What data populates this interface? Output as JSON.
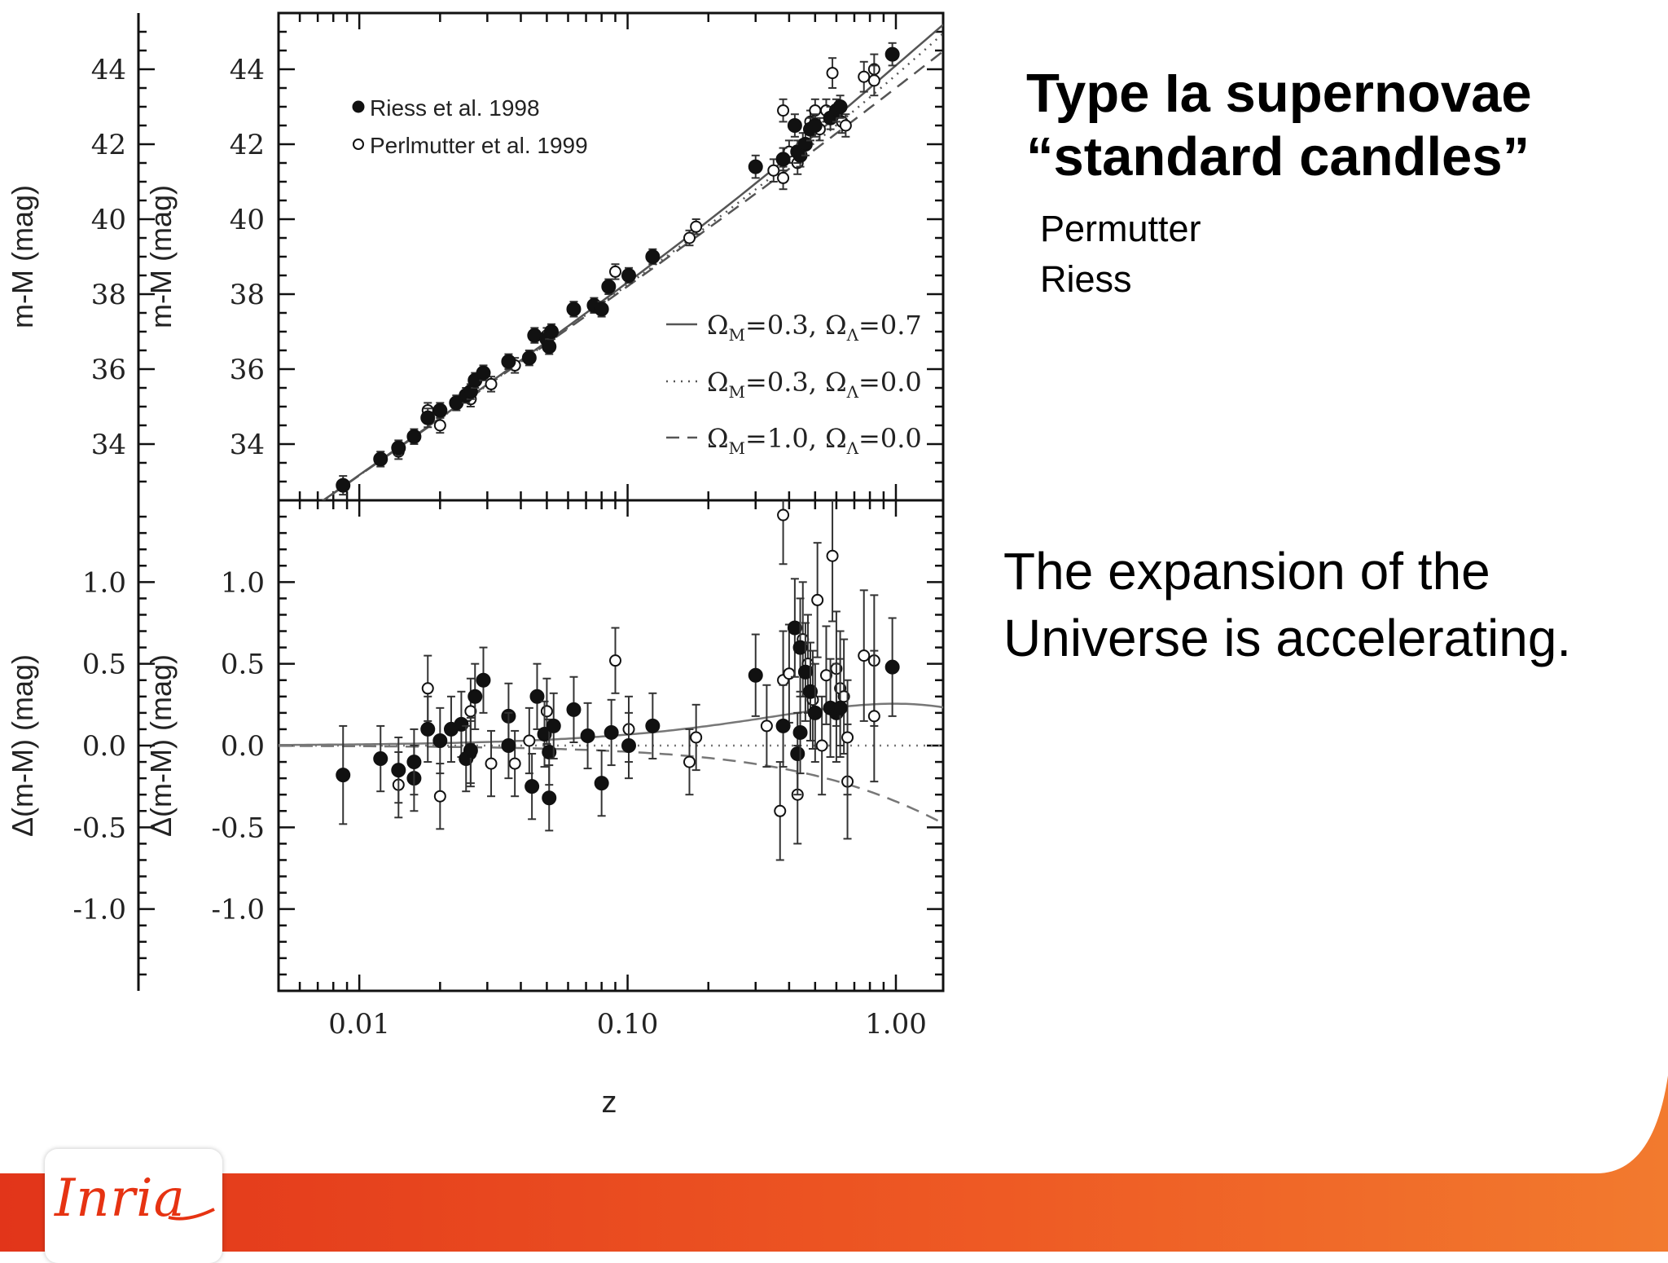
{
  "slide": {
    "title_line1": "Type Ia supernovae",
    "title_line2": "“standard candles”",
    "authors": [
      "Permutter",
      "Riess"
    ],
    "conclusion_line1": "The expansion of the",
    "conclusion_line2": "Universe is accelerating."
  },
  "logo": {
    "text": "Inria"
  },
  "colors": {
    "band_red": "#e2351a",
    "band_orange": "#f2722a",
    "logo_red": "#e63312"
  },
  "chart_data": {
    "type": "scatter",
    "x_scale": "log",
    "xlim": [
      0.005,
      1.5
    ],
    "xticks": [
      0.01,
      0.1,
      1.0
    ],
    "xtick_labels": [
      "0.01",
      "0.10",
      "1.00"
    ],
    "xlabel": "z",
    "legend_placement": "top-left (markers), lower-right (model curves)",
    "legend": [
      {
        "label": "Riess et al. 1998",
        "marker": "filled-circle"
      },
      {
        "label": "Perlmutter et al. 1999",
        "marker": "open-circle"
      }
    ],
    "models": [
      {
        "label": "=0.3, =0.7",
        "om": 0.3,
        "ol": 0.7,
        "style": "solid"
      },
      {
        "label": "=0.3, =0.0",
        "om": 0.3,
        "ol": 0.0,
        "style": "dotted"
      },
      {
        "label": "=1.0, =0.0",
        "om": 1.0,
        "ol": 0.0,
        "style": "dashed"
      }
    ],
    "panels": [
      {
        "name": "hubble-diagram",
        "ylabel": "m-M (mag)",
        "ylim": [
          32.5,
          45.5
        ],
        "yticks": [
          34,
          36,
          38,
          40,
          42,
          44
        ],
        "riess": [
          {
            "z": 0.0087,
            "y": 32.9,
            "e": 0.25
          },
          {
            "z": 0.012,
            "y": 33.6,
            "e": 0.2
          },
          {
            "z": 0.014,
            "y": 33.9,
            "e": 0.2
          },
          {
            "z": 0.016,
            "y": 34.2,
            "e": 0.2
          },
          {
            "z": 0.018,
            "y": 34.7,
            "e": 0.25
          },
          {
            "z": 0.02,
            "y": 34.9,
            "e": 0.2
          },
          {
            "z": 0.023,
            "y": 35.1,
            "e": 0.2
          },
          {
            "z": 0.025,
            "y": 35.3,
            "e": 0.2
          },
          {
            "z": 0.026,
            "y": 35.4,
            "e": 0.2
          },
          {
            "z": 0.027,
            "y": 35.7,
            "e": 0.2
          },
          {
            "z": 0.029,
            "y": 35.9,
            "e": 0.2
          },
          {
            "z": 0.036,
            "y": 36.2,
            "e": 0.2
          },
          {
            "z": 0.043,
            "y": 36.3,
            "e": 0.2
          },
          {
            "z": 0.045,
            "y": 36.9,
            "e": 0.2
          },
          {
            "z": 0.05,
            "y": 36.8,
            "e": 0.2
          },
          {
            "z": 0.051,
            "y": 36.6,
            "e": 0.2
          },
          {
            "z": 0.052,
            "y": 37.0,
            "e": 0.2
          },
          {
            "z": 0.063,
            "y": 37.6,
            "e": 0.2
          },
          {
            "z": 0.075,
            "y": 37.7,
            "e": 0.2
          },
          {
            "z": 0.08,
            "y": 37.6,
            "e": 0.2
          },
          {
            "z": 0.085,
            "y": 38.2,
            "e": 0.2
          },
          {
            "z": 0.101,
            "y": 38.5,
            "e": 0.2
          },
          {
            "z": 0.124,
            "y": 39.0,
            "e": 0.2
          },
          {
            "z": 0.3,
            "y": 41.4,
            "e": 0.3
          },
          {
            "z": 0.38,
            "y": 41.6,
            "e": 0.3
          },
          {
            "z": 0.42,
            "y": 42.5,
            "e": 0.3
          },
          {
            "z": 0.43,
            "y": 41.8,
            "e": 0.3
          },
          {
            "z": 0.44,
            "y": 41.7,
            "e": 0.3
          },
          {
            "z": 0.46,
            "y": 42.0,
            "e": 0.3
          },
          {
            "z": 0.48,
            "y": 42.4,
            "e": 0.3
          },
          {
            "z": 0.5,
            "y": 42.5,
            "e": 0.3
          },
          {
            "z": 0.57,
            "y": 42.7,
            "e": 0.3
          },
          {
            "z": 0.6,
            "y": 42.9,
            "e": 0.3
          },
          {
            "z": 0.62,
            "y": 43.0,
            "e": 0.3
          },
          {
            "z": 0.97,
            "y": 44.4,
            "e": 0.3
          }
        ],
        "perlmutter": [
          {
            "z": 0.014,
            "y": 33.8,
            "e": 0.2
          },
          {
            "z": 0.018,
            "y": 34.9,
            "e": 0.2
          },
          {
            "z": 0.02,
            "y": 34.5,
            "e": 0.2
          },
          {
            "z": 0.026,
            "y": 35.2,
            "e": 0.2
          },
          {
            "z": 0.031,
            "y": 35.6,
            "e": 0.2
          },
          {
            "z": 0.038,
            "y": 36.1,
            "e": 0.2
          },
          {
            "z": 0.05,
            "y": 36.9,
            "e": 0.2
          },
          {
            "z": 0.09,
            "y": 38.6,
            "e": 0.2
          },
          {
            "z": 0.17,
            "y": 39.5,
            "e": 0.2
          },
          {
            "z": 0.18,
            "y": 39.8,
            "e": 0.2
          },
          {
            "z": 0.35,
            "y": 41.3,
            "e": 0.3
          },
          {
            "z": 0.38,
            "y": 42.9,
            "e": 0.3
          },
          {
            "z": 0.38,
            "y": 41.1,
            "e": 0.3
          },
          {
            "z": 0.4,
            "y": 41.8,
            "e": 0.3
          },
          {
            "z": 0.43,
            "y": 41.5,
            "e": 0.3
          },
          {
            "z": 0.45,
            "y": 42.0,
            "e": 0.3
          },
          {
            "z": 0.48,
            "y": 42.6,
            "e": 0.3
          },
          {
            "z": 0.5,
            "y": 42.9,
            "e": 0.3
          },
          {
            "z": 0.52,
            "y": 42.4,
            "e": 0.3
          },
          {
            "z": 0.55,
            "y": 42.9,
            "e": 0.3
          },
          {
            "z": 0.58,
            "y": 43.9,
            "e": 0.4
          },
          {
            "z": 0.63,
            "y": 42.6,
            "e": 0.3
          },
          {
            "z": 0.65,
            "y": 42.5,
            "e": 0.3
          },
          {
            "z": 0.76,
            "y": 43.8,
            "e": 0.4
          },
          {
            "z": 0.83,
            "y": 44.0,
            "e": 0.4
          },
          {
            "z": 0.83,
            "y": 43.7,
            "e": 0.4
          }
        ]
      },
      {
        "name": "residuals",
        "ylabel": "Δ(m-M) (mag)",
        "ylim": [
          -1.5,
          1.5
        ],
        "yticks": [
          1.0,
          0.5,
          0.0,
          -0.5,
          -1.0
        ],
        "ytick_labels": [
          "1.0",
          "0.5",
          "0.0",
          "-0.5",
          "-1.0"
        ],
        "riess": [
          {
            "z": 0.0087,
            "y": -0.18,
            "e": 0.3
          },
          {
            "z": 0.012,
            "y": -0.08,
            "e": 0.2
          },
          {
            "z": 0.014,
            "y": -0.15,
            "e": 0.2
          },
          {
            "z": 0.016,
            "y": -0.2,
            "e": 0.2
          },
          {
            "z": 0.016,
            "y": -0.1,
            "e": 0.2
          },
          {
            "z": 0.018,
            "y": 0.1,
            "e": 0.2
          },
          {
            "z": 0.02,
            "y": 0.03,
            "e": 0.2
          },
          {
            "z": 0.022,
            "y": 0.1,
            "e": 0.2
          },
          {
            "z": 0.024,
            "y": 0.13,
            "e": 0.2
          },
          {
            "z": 0.025,
            "y": -0.08,
            "e": 0.2
          },
          {
            "z": 0.026,
            "y": -0.03,
            "e": 0.2
          },
          {
            "z": 0.027,
            "y": 0.3,
            "e": 0.2
          },
          {
            "z": 0.029,
            "y": 0.4,
            "e": 0.2
          },
          {
            "z": 0.036,
            "y": 0.18,
            "e": 0.2
          },
          {
            "z": 0.036,
            "y": 0.0,
            "e": 0.2
          },
          {
            "z": 0.044,
            "y": -0.25,
            "e": 0.2
          },
          {
            "z": 0.046,
            "y": 0.3,
            "e": 0.2
          },
          {
            "z": 0.049,
            "y": 0.07,
            "e": 0.2
          },
          {
            "z": 0.051,
            "y": -0.04,
            "e": 0.2
          },
          {
            "z": 0.051,
            "y": -0.32,
            "e": 0.2
          },
          {
            "z": 0.053,
            "y": 0.12,
            "e": 0.2
          },
          {
            "z": 0.063,
            "y": 0.22,
            "e": 0.2
          },
          {
            "z": 0.071,
            "y": 0.06,
            "e": 0.2
          },
          {
            "z": 0.08,
            "y": -0.23,
            "e": 0.2
          },
          {
            "z": 0.087,
            "y": 0.08,
            "e": 0.2
          },
          {
            "z": 0.101,
            "y": 0.0,
            "e": 0.2
          },
          {
            "z": 0.124,
            "y": 0.12,
            "e": 0.2
          },
          {
            "z": 0.3,
            "y": 0.43,
            "e": 0.25
          },
          {
            "z": 0.38,
            "y": 0.12,
            "e": 0.25
          },
          {
            "z": 0.42,
            "y": 0.72,
            "e": 0.3
          },
          {
            "z": 0.43,
            "y": -0.05,
            "e": 0.25
          },
          {
            "z": 0.44,
            "y": 0.6,
            "e": 0.3
          },
          {
            "z": 0.44,
            "y": 0.08,
            "e": 0.25
          },
          {
            "z": 0.46,
            "y": 0.45,
            "e": 0.3
          },
          {
            "z": 0.48,
            "y": 0.33,
            "e": 0.3
          },
          {
            "z": 0.5,
            "y": 0.2,
            "e": 0.3
          },
          {
            "z": 0.57,
            "y": 0.23,
            "e": 0.3
          },
          {
            "z": 0.6,
            "y": 0.2,
            "e": 0.3
          },
          {
            "z": 0.62,
            "y": 0.23,
            "e": 0.3
          },
          {
            "z": 0.97,
            "y": 0.48,
            "e": 0.3
          }
        ],
        "perlmutter": [
          {
            "z": 0.014,
            "y": -0.24,
            "e": 0.2
          },
          {
            "z": 0.018,
            "y": 0.35,
            "e": 0.2
          },
          {
            "z": 0.02,
            "y": -0.31,
            "e": 0.2
          },
          {
            "z": 0.026,
            "y": 0.21,
            "e": 0.2
          },
          {
            "z": 0.026,
            "y": -0.05,
            "e": 0.2
          },
          {
            "z": 0.031,
            "y": -0.11,
            "e": 0.2
          },
          {
            "z": 0.038,
            "y": -0.11,
            "e": 0.2
          },
          {
            "z": 0.043,
            "y": 0.03,
            "e": 0.2
          },
          {
            "z": 0.05,
            "y": 0.21,
            "e": 0.2
          },
          {
            "z": 0.09,
            "y": 0.52,
            "e": 0.2
          },
          {
            "z": 0.101,
            "y": 0.1,
            "e": 0.2
          },
          {
            "z": 0.17,
            "y": -0.1,
            "e": 0.2
          },
          {
            "z": 0.18,
            "y": 0.05,
            "e": 0.2
          },
          {
            "z": 0.33,
            "y": 0.12,
            "e": 0.25
          },
          {
            "z": 0.37,
            "y": -0.4,
            "e": 0.3
          },
          {
            "z": 0.38,
            "y": 1.41,
            "e": 0.3
          },
          {
            "z": 0.38,
            "y": 0.4,
            "e": 0.3
          },
          {
            "z": 0.4,
            "y": 0.44,
            "e": 0.3
          },
          {
            "z": 0.43,
            "y": -0.3,
            "e": 0.3
          },
          {
            "z": 0.45,
            "y": 0.65,
            "e": 0.35
          },
          {
            "z": 0.47,
            "y": 0.5,
            "e": 0.3
          },
          {
            "z": 0.49,
            "y": 0.28,
            "e": 0.3
          },
          {
            "z": 0.51,
            "y": 0.89,
            "e": 0.35
          },
          {
            "z": 0.53,
            "y": 0.0,
            "e": 0.3
          },
          {
            "z": 0.55,
            "y": 0.43,
            "e": 0.3
          },
          {
            "z": 0.58,
            "y": 1.16,
            "e": 0.4
          },
          {
            "z": 0.6,
            "y": 0.47,
            "e": 0.35
          },
          {
            "z": 0.62,
            "y": 0.35,
            "e": 0.35
          },
          {
            "z": 0.64,
            "y": 0.3,
            "e": 0.35
          },
          {
            "z": 0.66,
            "y": -0.22,
            "e": 0.35
          },
          {
            "z": 0.66,
            "y": 0.05,
            "e": 0.35
          },
          {
            "z": 0.76,
            "y": 0.55,
            "e": 0.4
          },
          {
            "z": 0.83,
            "y": 0.52,
            "e": 0.4
          },
          {
            "z": 0.83,
            "y": 0.18,
            "e": 0.4
          }
        ]
      }
    ]
  }
}
